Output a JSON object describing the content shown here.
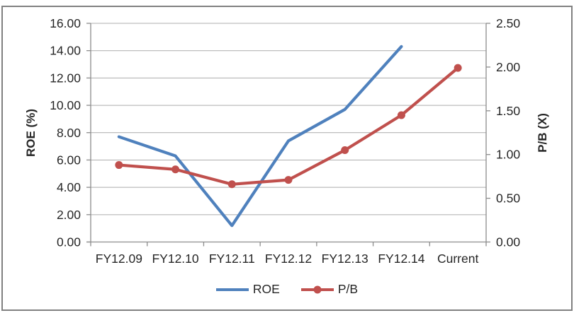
{
  "chart_data": {
    "type": "line",
    "title": "",
    "categories": [
      "FY12.09",
      "FY12.10",
      "FY12.11",
      "FY12.12",
      "FY12.13",
      "FY12.14",
      "Current"
    ],
    "series": [
      {
        "name": "ROE",
        "axis": "left",
        "color": "#4F81BD",
        "marker": "none",
        "values": [
          7.7,
          6.3,
          1.2,
          7.4,
          9.7,
          14.3,
          null
        ]
      },
      {
        "name": "P/B",
        "axis": "right",
        "color": "#C0504D",
        "marker": "circle",
        "values": [
          0.88,
          0.83,
          0.66,
          0.71,
          1.05,
          1.45,
          1.99
        ]
      }
    ],
    "left_axis": {
      "label": "ROE (%)",
      "min": 0,
      "max": 16,
      "step": 2,
      "tick_labels": [
        "0.00",
        "2.00",
        "4.00",
        "6.00",
        "8.00",
        "10.00",
        "12.00",
        "14.00",
        "16.00"
      ]
    },
    "right_axis": {
      "label": "P/B (X)",
      "min": 0,
      "max": 2.5,
      "step": 0.5,
      "tick_labels": [
        "0.00",
        "0.50",
        "1.00",
        "1.50",
        "2.00",
        "2.50"
      ]
    },
    "grid": true,
    "legend_position": "bottom"
  },
  "colors": {
    "background": "#FFFFFF",
    "frame_border": "#808080",
    "gridline": "#ACACAC",
    "axis_line": "#8C8C8C",
    "text": "#262626"
  }
}
